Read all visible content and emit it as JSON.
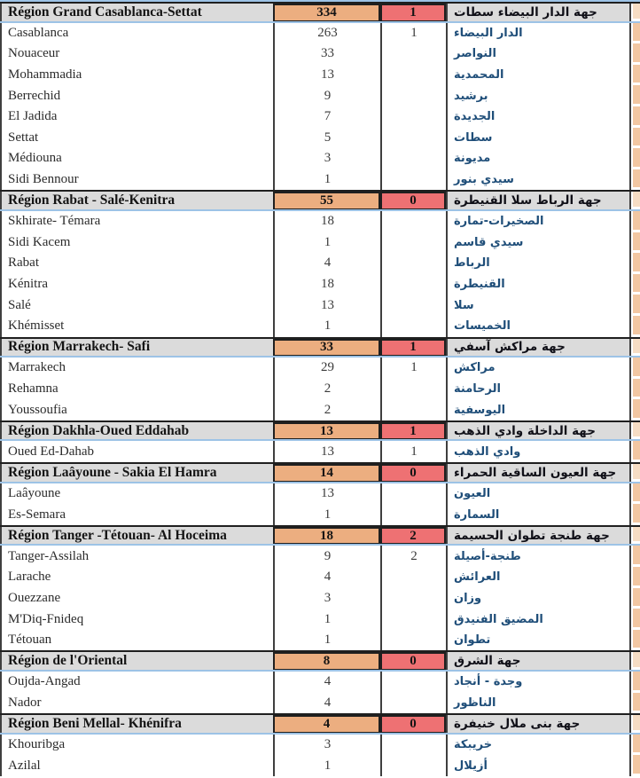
{
  "colors": {
    "region_total_bg": "#ECAE80",
    "region_deaths_bg": "#EE7173",
    "region_row_bg": "#DBDBDB",
    "accent_line": "#9DC3E6",
    "arabic_text": "#1F4E79",
    "edge_strip": "#F2C7A2"
  },
  "regions": [
    {
      "name_fr": "Région Grand Casablanca-Settat",
      "total": "334",
      "deaths": "1",
      "name_ar": "جهة الدار البيضاء سطات",
      "cities": [
        {
          "name_fr": "Casablanca",
          "cases": "263",
          "deaths": "1",
          "name_ar": "الدار البيضاء"
        },
        {
          "name_fr": "Nouaceur",
          "cases": "33",
          "deaths": "",
          "name_ar": "النواصر"
        },
        {
          "name_fr": "Mohammadia",
          "cases": "13",
          "deaths": "",
          "name_ar": "المحمدية"
        },
        {
          "name_fr": "Berrechid",
          "cases": "9",
          "deaths": "",
          "name_ar": "برشيد"
        },
        {
          "name_fr": "El Jadida",
          "cases": "7",
          "deaths": "",
          "name_ar": "الجديدة"
        },
        {
          "name_fr": "Settat",
          "cases": "5",
          "deaths": "",
          "name_ar": "سطات"
        },
        {
          "name_fr": "Médiouna",
          "cases": "3",
          "deaths": "",
          "name_ar": "مديونة"
        },
        {
          "name_fr": "Sidi Bennour",
          "cases": "1",
          "deaths": "",
          "name_ar": "سيدي بنور"
        }
      ]
    },
    {
      "name_fr": "Région Rabat - Salé-Kenitra",
      "total": "55",
      "deaths": "0",
      "name_ar": "جهة الرباط سلا القنيطرة",
      "cities": [
        {
          "name_fr": "Skhirate- Témara",
          "cases": "18",
          "deaths": "",
          "name_ar": "الصخيرات-تمارة"
        },
        {
          "name_fr": "Sidi Kacem",
          "cases": "1",
          "deaths": "",
          "name_ar": "سيدي قاسم"
        },
        {
          "name_fr": "Rabat",
          "cases": "4",
          "deaths": "",
          "name_ar": "الرباط"
        },
        {
          "name_fr": "Kénitra",
          "cases": "18",
          "deaths": "",
          "name_ar": "القنيطرة"
        },
        {
          "name_fr": "Salé",
          "cases": "13",
          "deaths": "",
          "name_ar": "سلا"
        },
        {
          "name_fr": "Khémisset",
          "cases": "1",
          "deaths": "",
          "name_ar": "الخميسات"
        }
      ]
    },
    {
      "name_fr": "Région Marrakech- Safi",
      "total": "33",
      "deaths": "1",
      "name_ar": "جهة مراكش آسفي",
      "cities": [
        {
          "name_fr": "Marrakech",
          "cases": "29",
          "deaths": "1",
          "name_ar": "مراكش"
        },
        {
          "name_fr": "Rehamna",
          "cases": "2",
          "deaths": "",
          "name_ar": "الرحامنة"
        },
        {
          "name_fr": "Youssoufia",
          "cases": "2",
          "deaths": "",
          "name_ar": "اليوسفية"
        }
      ]
    },
    {
      "name_fr": "Région Dakhla-Oued Eddahab",
      "total": "13",
      "deaths": "1",
      "name_ar": "جهة الداخلة وادي الذهب",
      "cities": [
        {
          "name_fr": "Oued Ed-Dahab",
          "cases": "13",
          "deaths": "1",
          "name_ar": "وادي الذهب"
        }
      ]
    },
    {
      "name_fr": "Région Laâyoune - Sakia El Hamra",
      "total": "14",
      "deaths": "0",
      "name_ar": "جهة العيون الساقية الحمراء",
      "cities": [
        {
          "name_fr": "Laâyoune",
          "cases": "13",
          "deaths": "",
          "name_ar": "العيون"
        },
        {
          "name_fr": "Es-Semara",
          "cases": "1",
          "deaths": "",
          "name_ar": "السمارة"
        }
      ]
    },
    {
      "name_fr": "Région Tanger -Tétouan- Al Hoceima",
      "total": "18",
      "deaths": "2",
      "name_ar": "جهة طنجة تطوان الحسيمة",
      "cities": [
        {
          "name_fr": "Tanger-Assilah",
          "cases": "9",
          "deaths": "2",
          "name_ar": "طنجة-أصيلة"
        },
        {
          "name_fr": "Larache",
          "cases": "4",
          "deaths": "",
          "name_ar": "العرائش"
        },
        {
          "name_fr": "Ouezzane",
          "cases": "3",
          "deaths": "",
          "name_ar": "وزان"
        },
        {
          "name_fr": "M'Diq-Fnideq",
          "cases": "1",
          "deaths": "",
          "name_ar": "المضيق الفنيدق"
        },
        {
          "name_fr": "Tétouan",
          "cases": "1",
          "deaths": "",
          "name_ar": "تطوان"
        }
      ]
    },
    {
      "name_fr": "Région de l'Oriental",
      "total": "8",
      "deaths": "0",
      "name_ar": "جهة الشرق",
      "cities": [
        {
          "name_fr": "Oujda-Angad",
          "cases": "4",
          "deaths": "",
          "name_ar": "وجدة - أنجاد"
        },
        {
          "name_fr": "Nador",
          "cases": "4",
          "deaths": "",
          "name_ar": "الناظور"
        }
      ]
    },
    {
      "name_fr": "Région Beni Mellal- Khénifra",
      "total": "4",
      "deaths": "0",
      "name_ar": "جهة بنى ملال خنيفرة",
      "cities": [
        {
          "name_fr": "Khouribga",
          "cases": "3",
          "deaths": "",
          "name_ar": "خريبكة"
        },
        {
          "name_fr": "Azilal",
          "cases": "1",
          "deaths": "",
          "name_ar": "أزيلال"
        }
      ]
    }
  ]
}
